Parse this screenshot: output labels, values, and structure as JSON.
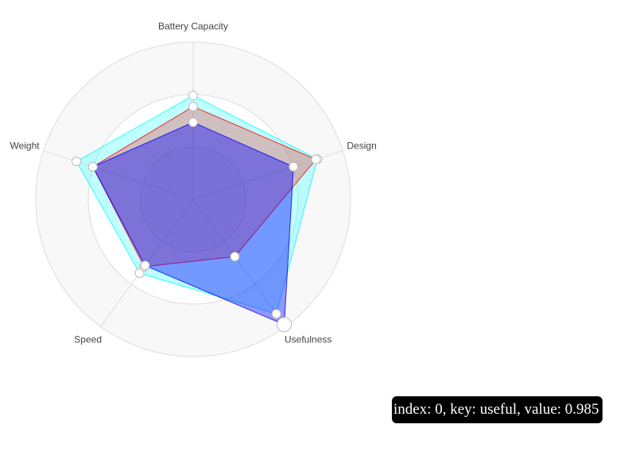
{
  "chart_data": {
    "type": "radar",
    "axes": [
      {
        "key": "battery",
        "label": "Battery Capacity"
      },
      {
        "key": "design",
        "label": "Design"
      },
      {
        "key": "useful",
        "label": "Usefulness"
      },
      {
        "key": "speed",
        "label": "Speed"
      },
      {
        "key": "weight",
        "label": "Weight"
      }
    ],
    "range": [
      0,
      1
    ],
    "rings": 3,
    "grid": true,
    "series": [
      {
        "color": "#00ffff",
        "fill_opacity": 0.25,
        "values": [
          0.66,
          0.83,
          0.9,
          0.58,
          0.78
        ]
      },
      {
        "color": "#ff0000",
        "fill_opacity": 0.25,
        "values": [
          0.59,
          0.82,
          0.45,
          0.53,
          0.67
        ]
      },
      {
        "color": "#0000ff",
        "fill_opacity": 0.4,
        "values": [
          0.49,
          0.67,
          0.985,
          0.52,
          0.67
        ]
      }
    ],
    "highlight": {
      "series": 2,
      "index": 2
    }
  },
  "tooltip": {
    "text": "index: 0, key: useful, value: 0.985"
  }
}
